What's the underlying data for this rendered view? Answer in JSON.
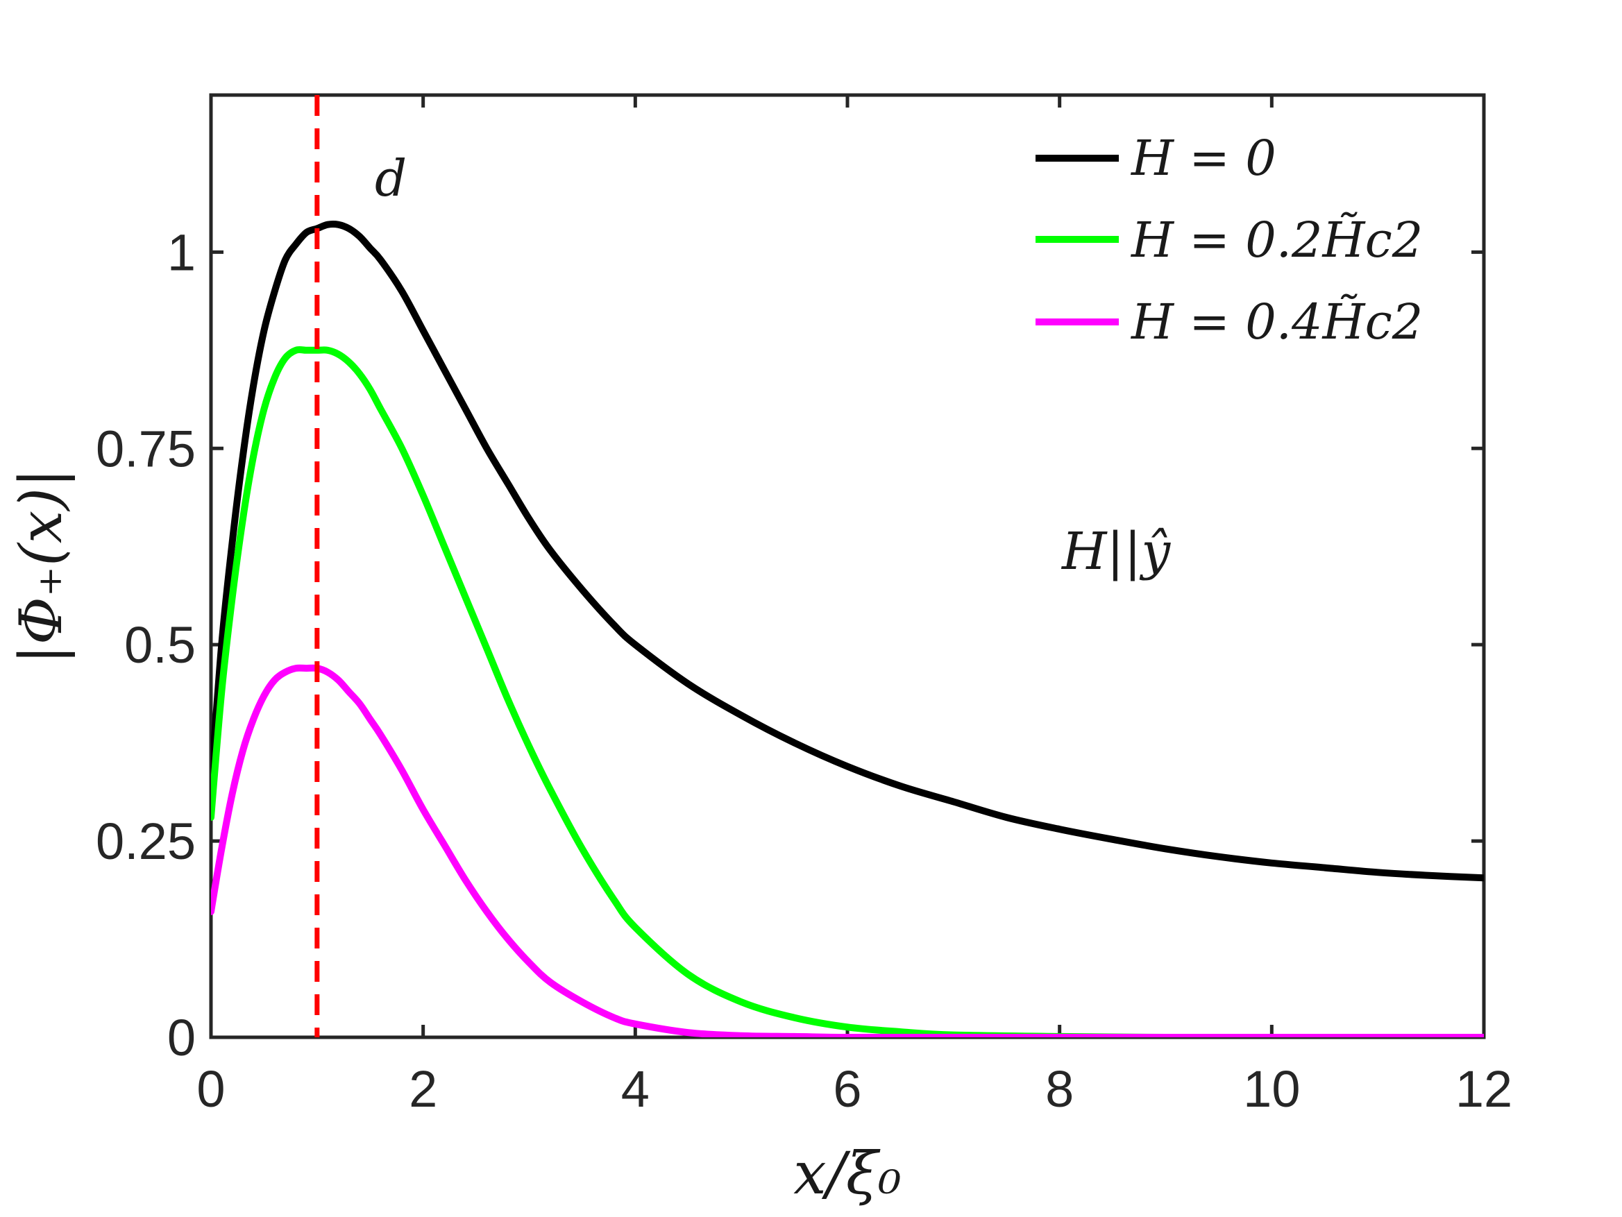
{
  "chart_data": {
    "type": "line",
    "xlabel": "x/ξ₀",
    "ylabel": "|Φ₊(x)|",
    "xlim": [
      0,
      12
    ],
    "ylim": [
      0,
      1.2
    ],
    "xticks": [
      0,
      2,
      4,
      6,
      8,
      10,
      12
    ],
    "xtick_labels": [
      "0",
      "2",
      "4",
      "6",
      "8",
      "10",
      "12"
    ],
    "yticks": [
      0,
      0.25,
      0.5,
      0.75,
      1
    ],
    "ytick_labels": [
      "0",
      "0.25",
      "0.5",
      "0.75",
      "1"
    ],
    "grid": false,
    "legend_position": "top-right",
    "series": [
      {
        "name": "H = 0",
        "color": "#000000",
        "x": [
          0,
          0.1,
          0.2,
          0.3,
          0.4,
          0.5,
          0.6,
          0.7,
          0.8,
          0.9,
          1.0,
          1.1,
          1.2,
          1.3,
          1.4,
          1.5,
          1.6,
          1.8,
          2.0,
          2.2,
          2.4,
          2.6,
          2.8,
          3.0,
          3.2,
          3.5,
          3.8,
          4.0,
          4.5,
          5.0,
          5.5,
          6.0,
          6.5,
          7.0,
          7.5,
          8.0,
          8.5,
          9.0,
          9.5,
          10.0,
          10.5,
          11.0,
          11.5,
          12.0
        ],
        "y": [
          0.32,
          0.5,
          0.63,
          0.74,
          0.83,
          0.9,
          0.95,
          0.99,
          1.01,
          1.025,
          1.03,
          1.035,
          1.035,
          1.03,
          1.02,
          1.005,
          0.99,
          0.95,
          0.9,
          0.85,
          0.8,
          0.75,
          0.705,
          0.66,
          0.62,
          0.57,
          0.525,
          0.5,
          0.45,
          0.41,
          0.375,
          0.345,
          0.32,
          0.3,
          0.28,
          0.265,
          0.252,
          0.24,
          0.23,
          0.222,
          0.216,
          0.21,
          0.206,
          0.203
        ]
      },
      {
        "name": "H = 0.2H̃c2",
        "color": "#00ff00",
        "x": [
          0,
          0.1,
          0.2,
          0.3,
          0.4,
          0.5,
          0.6,
          0.7,
          0.8,
          0.9,
          1.0,
          1.1,
          1.2,
          1.3,
          1.4,
          1.5,
          1.6,
          1.8,
          2.0,
          2.2,
          2.4,
          2.6,
          2.8,
          3.0,
          3.2,
          3.5,
          3.8,
          4.0,
          4.5,
          5.0,
          5.5,
          6.0,
          6.5,
          7.0,
          8.0,
          9.0,
          10.0,
          11.0,
          12.0
        ],
        "y": [
          0.28,
          0.44,
          0.56,
          0.66,
          0.74,
          0.8,
          0.84,
          0.865,
          0.875,
          0.875,
          0.875,
          0.875,
          0.87,
          0.86,
          0.845,
          0.825,
          0.8,
          0.75,
          0.69,
          0.625,
          0.56,
          0.495,
          0.43,
          0.37,
          0.315,
          0.24,
          0.175,
          0.14,
          0.08,
          0.045,
          0.025,
          0.013,
          0.007,
          0.003,
          0.001,
          0.0,
          0.0,
          0.0,
          0.0
        ]
      },
      {
        "name": "H = 0.4H̃c2",
        "color": "#ff00ff",
        "x": [
          0,
          0.1,
          0.2,
          0.3,
          0.4,
          0.5,
          0.6,
          0.7,
          0.8,
          0.9,
          1.0,
          1.1,
          1.2,
          1.3,
          1.4,
          1.5,
          1.6,
          1.8,
          2.0,
          2.2,
          2.4,
          2.6,
          2.8,
          3.0,
          3.2,
          3.5,
          3.8,
          4.0,
          4.5,
          5.0,
          5.5,
          6.0,
          7.0,
          8.0,
          9.0,
          10.0,
          11.0,
          12.0
        ],
        "y": [
          0.16,
          0.24,
          0.31,
          0.365,
          0.405,
          0.435,
          0.455,
          0.465,
          0.47,
          0.47,
          0.47,
          0.465,
          0.455,
          0.44,
          0.425,
          0.405,
          0.385,
          0.34,
          0.29,
          0.245,
          0.2,
          0.16,
          0.125,
          0.095,
          0.07,
          0.045,
          0.025,
          0.017,
          0.006,
          0.002,
          0.001,
          0.0,
          0.0,
          0.0,
          0.0,
          0.0,
          0.0,
          0.0
        ]
      }
    ],
    "reference_line": {
      "x": 1.0,
      "label": "d",
      "color": "#ff0000",
      "style": "dashed"
    },
    "annotations": [
      {
        "text": "H||ŷ",
        "x": 8.6,
        "y": 0.61
      }
    ]
  }
}
